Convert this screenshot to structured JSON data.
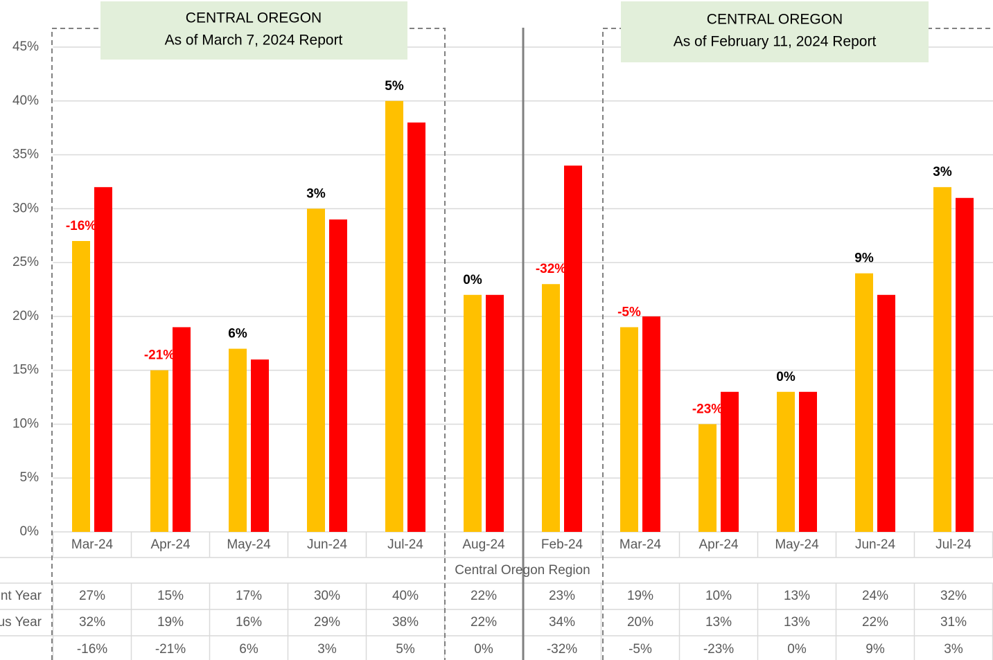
{
  "chart_data": {
    "type": "bar",
    "annotations": [
      {
        "lines": [
          "CENTRAL OREGON",
          "As of March 7, 2024 Report"
        ]
      },
      {
        "lines": [
          "CENTRAL OREGON",
          "As of February 11, 2024 Report"
        ]
      }
    ],
    "x_group_label": "Central Oregon Region",
    "categories": [
      "Mar-24",
      "Apr-24",
      "May-24",
      "Jun-24",
      "Jul-24",
      "Aug-24",
      "Feb-24",
      "Mar-24",
      "Apr-24",
      "May-24",
      "Jun-24",
      "Jul-24"
    ],
    "series": [
      {
        "name": "nt Year",
        "color": "#ffc000",
        "values": [
          27,
          15,
          17,
          30,
          40,
          22,
          23,
          19,
          10,
          13,
          24,
          32
        ],
        "value_labels": [
          "27%",
          "15%",
          "17%",
          "30%",
          "40%",
          "22%",
          "23%",
          "19%",
          "10%",
          "13%",
          "24%",
          "32%"
        ]
      },
      {
        "name": "us Year",
        "color": "#ff0000",
        "values": [
          32,
          19,
          16,
          29,
          38,
          22,
          34,
          20,
          13,
          13,
          22,
          31
        ],
        "value_labels": [
          "32%",
          "19%",
          "16%",
          "29%",
          "38%",
          "22%",
          "34%",
          "20%",
          "13%",
          "13%",
          "22%",
          "31%"
        ]
      }
    ],
    "change": {
      "values": [
        -16,
        -21,
        6,
        3,
        5,
        0,
        -32,
        -5,
        -23,
        0,
        9,
        3
      ],
      "value_labels": [
        "-16%",
        "-21%",
        "6%",
        "3%",
        "5%",
        "0%",
        "-32%",
        "-5%",
        "-23%",
        "0%",
        "9%",
        "3%"
      ],
      "color": "#000000",
      "negative_color": "#ff0000"
    },
    "ylim": [
      0,
      45
    ],
    "yticks": [
      {
        "value": 0,
        "label": "0%"
      },
      {
        "value": 5,
        "label": "5%"
      },
      {
        "value": 10,
        "label": "10%"
      },
      {
        "value": 15,
        "label": "15%"
      },
      {
        "value": 20,
        "label": "20%"
      },
      {
        "value": 25,
        "label": "25%"
      },
      {
        "value": 30,
        "label": "30%"
      },
      {
        "value": 35,
        "label": "35%"
      },
      {
        "value": 40,
        "label": "40%"
      },
      {
        "value": 45,
        "label": "45%"
      }
    ],
    "grid": true
  }
}
